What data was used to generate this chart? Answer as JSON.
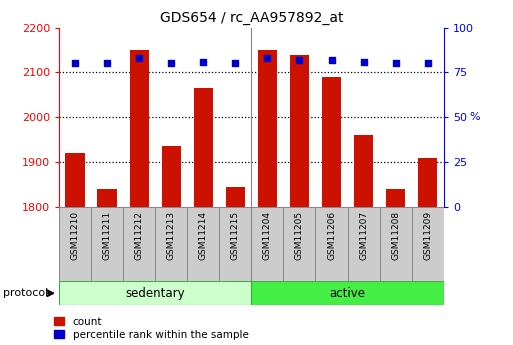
{
  "title": "GDS654 / rc_AA957892_at",
  "samples": [
    "GSM11210",
    "GSM11211",
    "GSM11212",
    "GSM11213",
    "GSM11214",
    "GSM11215",
    "GSM11204",
    "GSM11205",
    "GSM11206",
    "GSM11207",
    "GSM11208",
    "GSM11209"
  ],
  "counts": [
    1920,
    1840,
    2150,
    1935,
    2065,
    1845,
    2150,
    2140,
    2090,
    1960,
    1840,
    1910
  ],
  "percentile_ranks": [
    80,
    80,
    83,
    80,
    81,
    80,
    83,
    82,
    82,
    81,
    80,
    80
  ],
  "groups": [
    "sedentary",
    "sedentary",
    "sedentary",
    "sedentary",
    "sedentary",
    "sedentary",
    "active",
    "active",
    "active",
    "active",
    "active",
    "active"
  ],
  "sed_color": "#CCFFCC",
  "act_color": "#44EE44",
  "bar_color": "#CC1100",
  "dot_color": "#0000CC",
  "cell_color": "#CCCCCC",
  "cell_edge_color": "#888888",
  "ylim_left": [
    1800,
    2200
  ],
  "ylim_right": [
    0,
    100
  ],
  "yticks_left": [
    1800,
    1900,
    2000,
    2100,
    2200
  ],
  "yticks_right": [
    0,
    25,
    50,
    75,
    100
  ],
  "grid_values": [
    1900,
    2000,
    2100
  ],
  "background_color": "#ffffff",
  "bar_width": 0.6,
  "pct_marker_size": 20
}
